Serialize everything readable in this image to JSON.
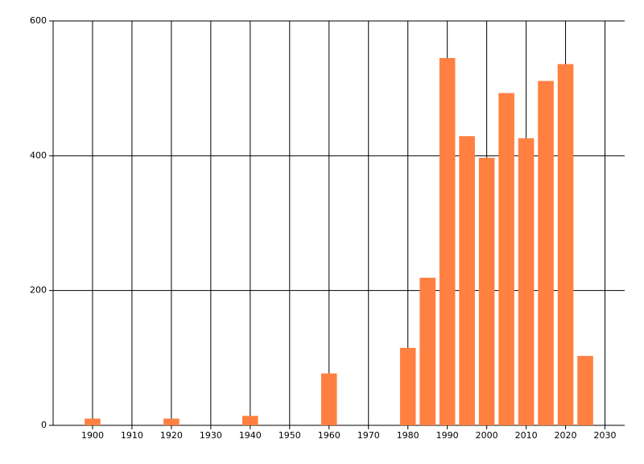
{
  "chart_data": {
    "type": "bar",
    "x": [
      1900,
      1920,
      1940,
      1960,
      1980,
      1985,
      1990,
      1995,
      2000,
      2005,
      2010,
      2015,
      2020,
      2025
    ],
    "values": [
      10,
      10,
      14,
      77,
      115,
      219,
      545,
      429,
      397,
      493,
      426,
      511,
      536,
      103
    ],
    "color": "#ff8040",
    "xlim": [
      1890,
      2035
    ],
    "xticks": [
      1900,
      1910,
      1920,
      1930,
      1940,
      1950,
      1960,
      1970,
      1980,
      1990,
      2000,
      2010,
      2020,
      2030
    ],
    "ylim": [
      0,
      600
    ],
    "yticks": [
      0,
      200,
      400,
      600
    ],
    "grid": true
  }
}
